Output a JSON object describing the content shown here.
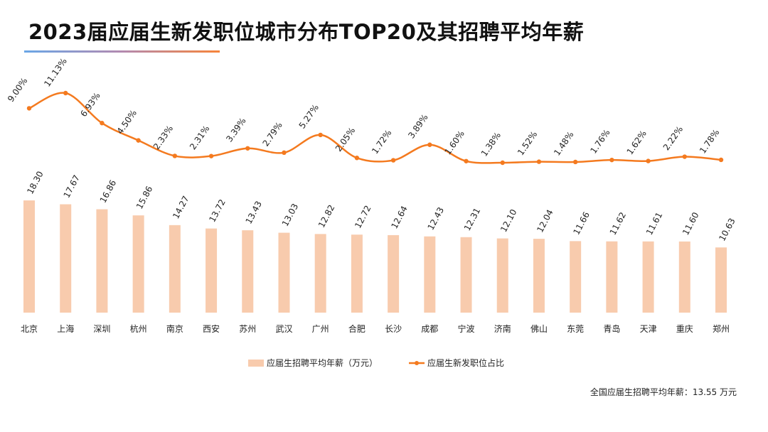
{
  "title": "2023届应届生新发职位城市分布TOP20及其招聘平均年薪",
  "footnote": "全国应届生招聘平均年薪：13.55 万元",
  "chart_data": {
    "type": "bar+line",
    "categories": [
      "北京",
      "上海",
      "深圳",
      "杭州",
      "南京",
      "西安",
      "苏州",
      "武汉",
      "广州",
      "合肥",
      "长沙",
      "成都",
      "宁波",
      "济南",
      "佛山",
      "东莞",
      "青岛",
      "天津",
      "重庆",
      "郑州"
    ],
    "series": [
      {
        "name": "应届生招聘平均年薪（万元）",
        "type": "bar",
        "color": "#f8cbad",
        "values": [
          18.3,
          17.67,
          16.86,
          15.86,
          14.27,
          13.72,
          13.43,
          13.03,
          12.82,
          12.72,
          12.64,
          12.43,
          12.31,
          12.1,
          12.04,
          11.66,
          11.62,
          11.61,
          11.6,
          10.63
        ],
        "labels": [
          "18.30",
          "17.67",
          "16.86",
          "15.86",
          "14.27",
          "13.72",
          "13.43",
          "13.03",
          "12.82",
          "12.72",
          "12.64",
          "12.43",
          "12.31",
          "12.10",
          "12.04",
          "11.66",
          "11.62",
          "11.61",
          "11.60",
          "10.63"
        ]
      },
      {
        "name": "应届生新发职位占比",
        "type": "line",
        "color": "#f47a1f",
        "unit": "%",
        "values": [
          9.0,
          11.13,
          6.93,
          4.5,
          2.33,
          2.31,
          3.39,
          2.79,
          5.27,
          2.05,
          1.72,
          3.89,
          1.6,
          1.38,
          1.52,
          1.48,
          1.76,
          1.62,
          2.22,
          1.78
        ],
        "labels": [
          "9.00%",
          "11.13%",
          "6.93%",
          "4.50%",
          "2.33%",
          "2.31%",
          "3.39%",
          "2.79%",
          "5.27%",
          "2.05%",
          "1.72%",
          "3.89%",
          "1.60%",
          "1.38%",
          "1.52%",
          "1.48%",
          "1.76%",
          "1.62%",
          "2.22%",
          "1.78%"
        ]
      }
    ],
    "legend": "bottom",
    "grid": false
  }
}
